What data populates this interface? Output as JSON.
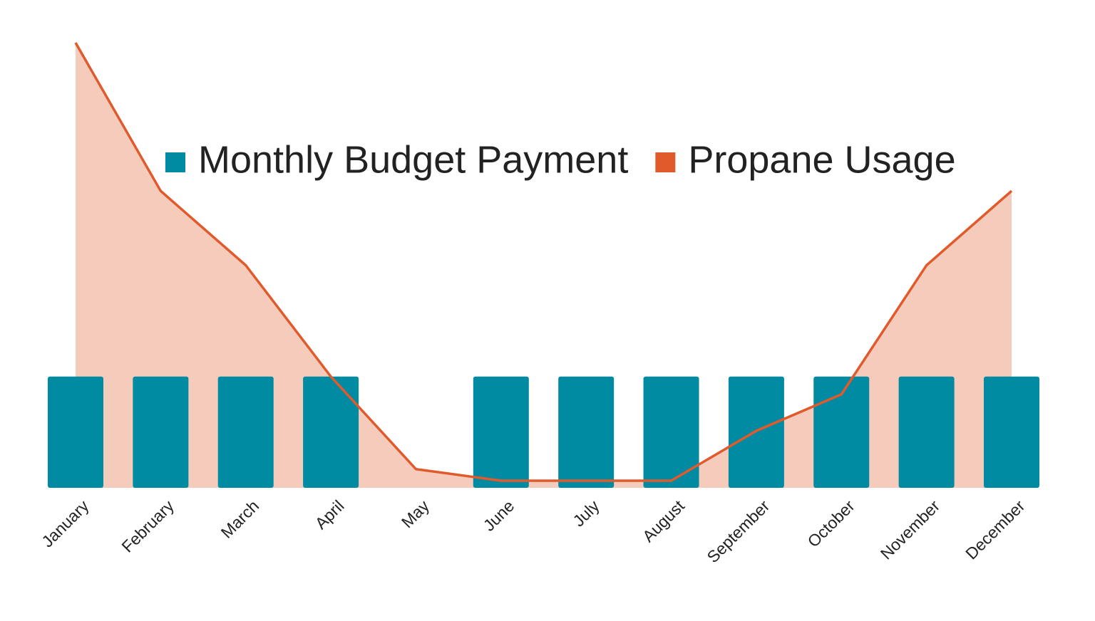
{
  "chart_data": {
    "type": "bar-line",
    "categories": [
      "January",
      "February",
      "March",
      "April",
      "May",
      "June",
      "July",
      "August",
      "September",
      "October",
      "November",
      "December"
    ],
    "series": [
      {
        "name": "Monthly Budget Payment",
        "type": "bar",
        "color": "#008ba3",
        "values": [
          25,
          25,
          25,
          25,
          null,
          25,
          25,
          25,
          25,
          25,
          25,
          25
        ]
      },
      {
        "name": "Propane Usage",
        "type": "area-line",
        "color": "#e05a2b",
        "fill": "#f5cbbc",
        "values": [
          100,
          66.7,
          50,
          25,
          4.2,
          1.6,
          1.6,
          1.6,
          12.8,
          21,
          50,
          66.7
        ]
      }
    ],
    "ylim": [
      0,
      100
    ],
    "legend": "top"
  }
}
